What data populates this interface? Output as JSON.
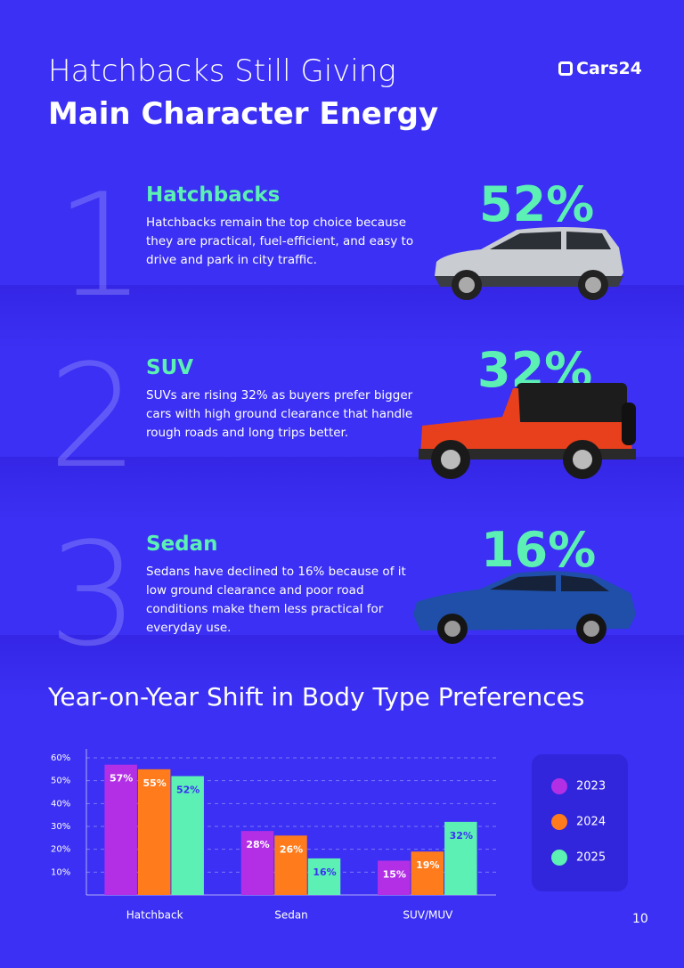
{
  "header": {
    "title_line1": "Hatchbacks Still Giving",
    "title_line2": "Main Character Energy",
    "logo": "Cars24"
  },
  "items": [
    {
      "number": "1",
      "title": "Hatchbacks",
      "description": "Hatchbacks remain the top choice because they are practical, fuel-efficient, and easy to drive and park in city traffic.",
      "percent": "52%"
    },
    {
      "number": "2",
      "title": "SUV",
      "description": "SUVs are rising 32% as buyers prefer bigger cars with high ground clearance that handle rough roads and long trips better.",
      "percent": "32%"
    },
    {
      "number": "3",
      "title": "Sedan",
      "description": "Sedans have declined to 16% because of it low ground clearance and poor road conditions make them less practical for everyday use.",
      "percent": "16%"
    }
  ],
  "chart_data": {
    "type": "bar",
    "title": "Year-on-Year Shift in Body Type Preferences",
    "categories": [
      "Hatchback",
      "Sedan",
      "SUV/MUV"
    ],
    "series": [
      {
        "name": "2023",
        "color": "#b32fe6",
        "values": [
          57,
          28,
          15
        ],
        "value_labels": [
          "57%",
          "28%",
          "15%"
        ]
      },
      {
        "name": "2024",
        "color": "#ff7b1c",
        "values": [
          55,
          26,
          19
        ],
        "value_labels": [
          "55%",
          "26%",
          "19%"
        ]
      },
      {
        "name": "2025",
        "color": "#5cf0b4",
        "values": [
          52,
          16,
          32
        ],
        "value_labels": [
          "52%",
          "16%",
          "32%"
        ]
      }
    ],
    "ylim": [
      0,
      60
    ],
    "yticks": [
      {
        "value": 10,
        "label": "10%"
      },
      {
        "value": 20,
        "label": "20%"
      },
      {
        "value": 30,
        "label": "30%"
      },
      {
        "value": 40,
        "label": "40%"
      },
      {
        "value": 50,
        "label": "50%"
      },
      {
        "value": 60,
        "label": "60%"
      }
    ],
    "grid": true
  },
  "page_number": "10"
}
